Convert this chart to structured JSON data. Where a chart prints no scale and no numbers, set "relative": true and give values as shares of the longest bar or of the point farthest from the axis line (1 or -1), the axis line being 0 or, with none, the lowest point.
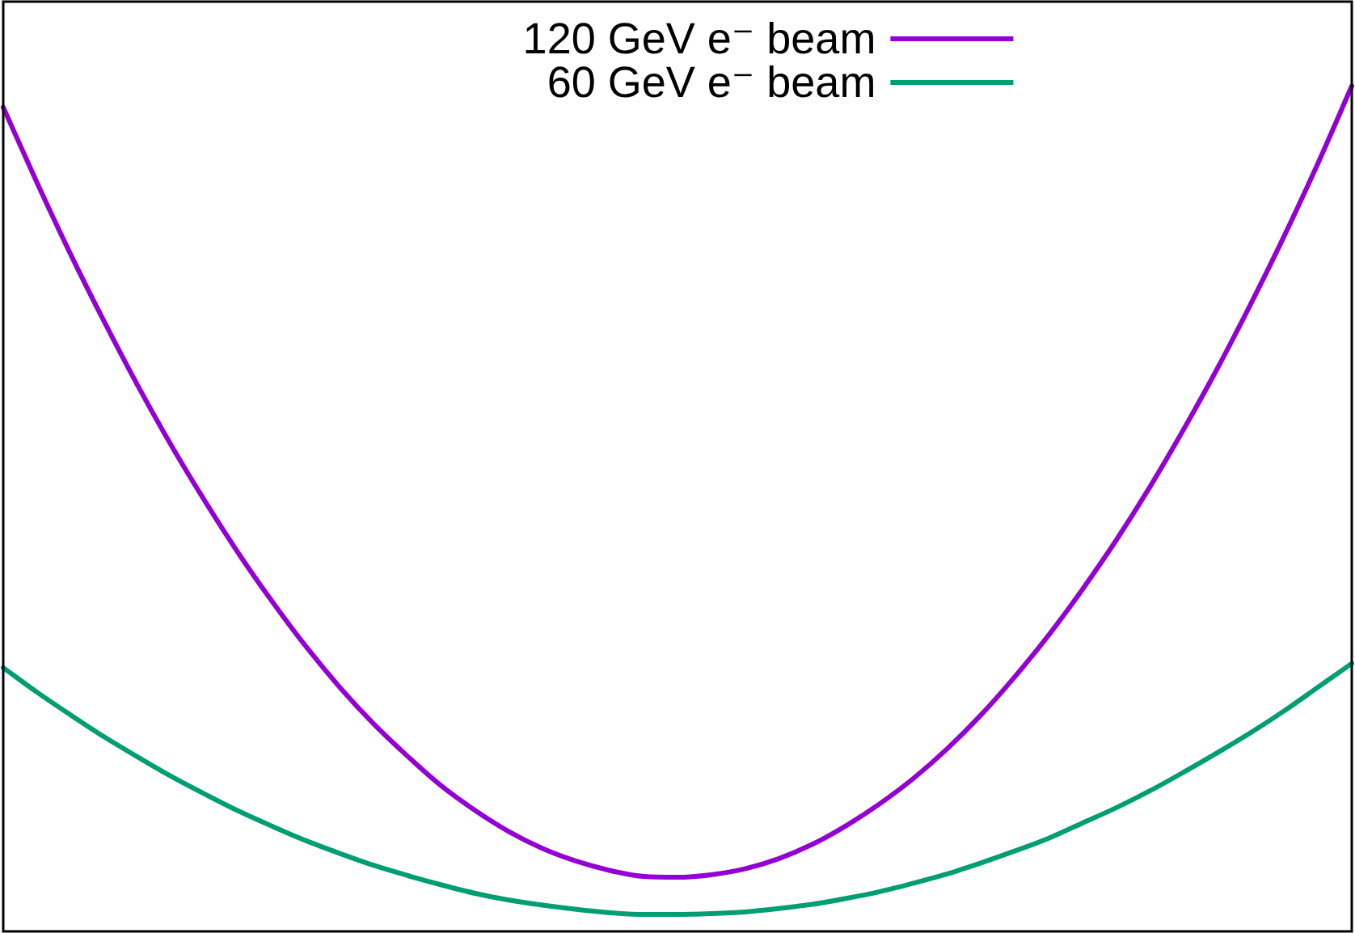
{
  "chart_data": {
    "type": "line",
    "relative": true,
    "categories": [
      null,
      null,
      null,
      null,
      null,
      null,
      null,
      null,
      null,
      null,
      null,
      null,
      null,
      null,
      null,
      null,
      null,
      null,
      null,
      null,
      null,
      null,
      null,
      null,
      null,
      null,
      null,
      null,
      null,
      null,
      null,
      null,
      null,
      null,
      null,
      null,
      null,
      null,
      null,
      null,
      null
    ],
    "series": [
      {
        "name": "120 GeV e⁻ beam",
        "color": "#9400d3",
        "values": [
          0.975,
          0.886,
          0.801,
          0.721,
          0.645,
          0.574,
          0.508,
          0.446,
          0.389,
          0.336,
          0.288,
          0.245,
          0.207,
          0.172,
          0.143,
          0.118,
          0.098,
          0.083,
          0.072,
          0.065,
          0.064,
          0.067,
          0.074,
          0.086,
          0.103,
          0.125,
          0.151,
          0.181,
          0.216,
          0.256,
          0.301,
          0.35,
          0.404,
          0.462,
          0.525,
          0.593,
          0.665,
          0.742,
          0.823,
          0.909,
          1.0
        ]
      },
      {
        "name": "60 GeV e⁻ beam",
        "color": "#009e73",
        "values": [
          0.312,
          0.283,
          0.256,
          0.23,
          0.206,
          0.183,
          0.162,
          0.142,
          0.124,
          0.107,
          0.092,
          0.078,
          0.066,
          0.055,
          0.045,
          0.037,
          0.031,
          0.026,
          0.022,
          0.02,
          0.02,
          0.021,
          0.023,
          0.027,
          0.032,
          0.039,
          0.047,
          0.057,
          0.068,
          0.081,
          0.095,
          0.11,
          0.128,
          0.146,
          0.166,
          0.188,
          0.211,
          0.235,
          0.261,
          0.289,
          0.317
        ]
      }
    ],
    "legend": "top"
  }
}
